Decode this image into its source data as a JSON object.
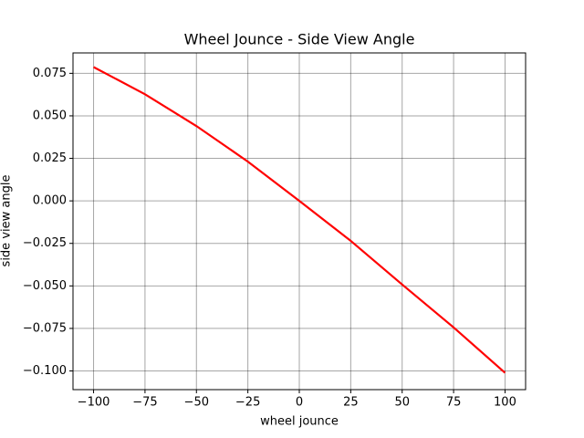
{
  "chart_data": {
    "type": "line",
    "title": "Wheel Jounce - Side View Angle",
    "x_label": "wheel jounce",
    "y_label": "side view angle",
    "x": [
      -100,
      -75,
      -50,
      -25,
      0,
      25,
      50,
      75,
      100
    ],
    "series": [
      {
        "name": "side view angle",
        "color": "#ff0000",
        "values": [
          0.0787,
          0.0627,
          0.044,
          0.0231,
          0,
          -0.0235,
          -0.0492,
          -0.0744,
          -0.1011
        ]
      }
    ],
    "xlim": [
      -110,
      110
    ],
    "xticks": [
      {
        "value": -100,
        "label": "−100"
      },
      {
        "value": -75,
        "label": "−75"
      },
      {
        "value": -50,
        "label": "−50"
      },
      {
        "value": -25,
        "label": "−25"
      },
      0,
      25,
      50,
      75,
      100
    ],
    "ylim": [
      -0.111,
      0.087
    ],
    "yticks": [
      {
        "value": -0.1,
        "label": "−0.100"
      },
      {
        "value": -0.075,
        "label": "−0.075"
      },
      {
        "value": -0.05,
        "label": "−0.050"
      },
      {
        "value": -0.025,
        "label": "−0.025"
      },
      {
        "value": 0,
        "label": "0.000"
      },
      0.025,
      {
        "value": 0.05,
        "label": "0.050"
      },
      0.075
    ],
    "grid": true
  }
}
